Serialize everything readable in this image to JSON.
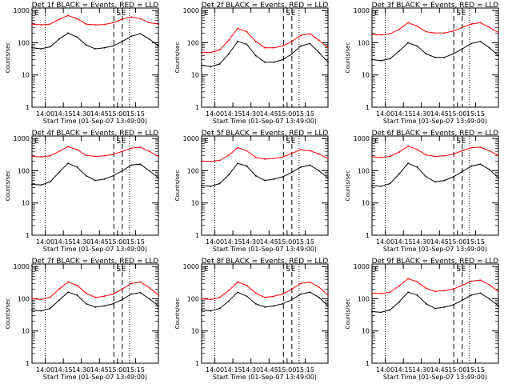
{
  "chart_data": {
    "panels": [
      {
        "title": "Det 1f BLACK = Events, RED = LLD",
        "red": [
          380,
          360,
          380,
          530,
          700,
          560,
          380,
          360,
          370,
          420,
          540,
          630,
          560,
          420,
          380
        ],
        "black": [
          70,
          65,
          75,
          130,
          200,
          150,
          85,
          65,
          70,
          80,
          110,
          160,
          190,
          130,
          80
        ]
      },
      {
        "title": "Det 2f BLACK = Events, RED = LLD",
        "red": [
          50,
          50,
          60,
          120,
          280,
          220,
          110,
          70,
          70,
          80,
          110,
          170,
          190,
          120,
          70
        ],
        "black": [
          20,
          18,
          22,
          45,
          110,
          90,
          40,
          25,
          25,
          30,
          45,
          80,
          95,
          50,
          25
        ]
      },
      {
        "title": "Det 3f BLACK = Events, RED = LLD",
        "red": [
          180,
          175,
          190,
          260,
          420,
          330,
          220,
          200,
          200,
          230,
          300,
          380,
          420,
          300,
          210
        ],
        "black": [
          30,
          28,
          32,
          55,
          100,
          80,
          45,
          35,
          35,
          45,
          65,
          95,
          110,
          70,
          40
        ]
      },
      {
        "title": "Det 4f BLACK = Events, RED = LLD",
        "red": [
          280,
          270,
          290,
          400,
          560,
          450,
          300,
          280,
          290,
          320,
          400,
          500,
          540,
          400,
          280
        ],
        "black": [
          38,
          36,
          45,
          90,
          170,
          130,
          70,
          50,
          55,
          70,
          100,
          150,
          160,
          100,
          60
        ]
      },
      {
        "title": "Det 5f BLACK = Events, RED = LLD",
        "red": [
          200,
          195,
          210,
          300,
          520,
          420,
          260,
          230,
          240,
          270,
          350,
          450,
          420,
          330,
          240
        ],
        "black": [
          35,
          33,
          40,
          75,
          170,
          140,
          70,
          50,
          55,
          65,
          90,
          130,
          150,
          100,
          60
        ]
      },
      {
        "title": "Det 6f BLACK = Events, RED = LLD",
        "red": [
          270,
          260,
          280,
          380,
          580,
          460,
          310,
          280,
          290,
          330,
          420,
          520,
          540,
          420,
          300
        ],
        "black": [
          35,
          33,
          40,
          80,
          170,
          130,
          65,
          45,
          50,
          65,
          95,
          140,
          160,
          110,
          60
        ]
      },
      {
        "title": "Det 7f BLACK = Events, RED = LLD",
        "red": [
          100,
          95,
          110,
          200,
          330,
          260,
          150,
          110,
          120,
          140,
          200,
          300,
          330,
          220,
          130
        ],
        "black": [
          45,
          42,
          50,
          90,
          160,
          130,
          70,
          55,
          60,
          70,
          95,
          140,
          155,
          100,
          60
        ]
      },
      {
        "title": "Det 8f BLACK = Events, RED = LLD",
        "red": [
          100,
          95,
          110,
          180,
          330,
          260,
          150,
          110,
          120,
          140,
          200,
          300,
          330,
          230,
          130
        ],
        "black": [
          45,
          42,
          50,
          85,
          160,
          120,
          70,
          55,
          60,
          70,
          95,
          140,
          160,
          110,
          60
        ]
      },
      {
        "title": "Det 9f BLACK = Events, RED = LLD",
        "red": [
          150,
          145,
          160,
          250,
          420,
          340,
          210,
          170,
          180,
          200,
          260,
          350,
          380,
          270,
          170
        ],
        "black": [
          40,
          38,
          45,
          80,
          160,
          130,
          70,
          50,
          55,
          65,
          90,
          130,
          150,
          100,
          60
        ]
      }
    ],
    "type": "line",
    "x_ticks": [
      "14:00",
      "14:15",
      "14:30",
      "14:45",
      "15:00",
      "15:15"
    ],
    "xlabel": "Start Time (01-Sep-07 13:49:00)",
    "ylabel": "Counts/sec",
    "y_ticks": [
      "1",
      "10",
      "100",
      "1000"
    ],
    "ylim": [
      1,
      1200
    ],
    "x_range_min": [
      0,
      105
    ],
    "x_tick_min": [
      11,
      26,
      41,
      56,
      71,
      86
    ],
    "dashed_lines_min": [
      68,
      75
    ],
    "dotted_lines_min": [
      11,
      81
    ],
    "markers": [
      "E",
      "S",
      "E"
    ]
  }
}
